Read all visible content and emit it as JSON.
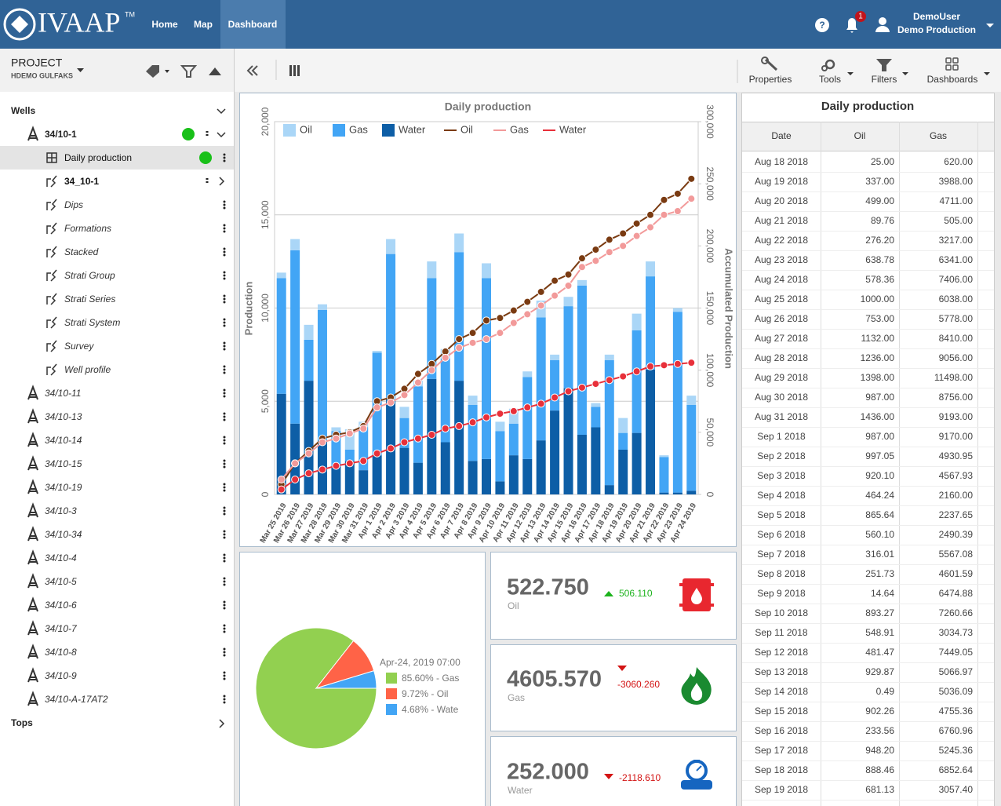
{
  "header": {
    "logo": "IVAAP",
    "trademark": "TM",
    "nav": [
      "Home",
      "Map",
      "Dashboard"
    ],
    "notifications": "1",
    "user": "DemoUser",
    "user_project": "Demo Production"
  },
  "sidebar": {
    "project_label": "PROJECT",
    "project_name": "HDEMO GULFAKS",
    "wells_label": "Wells",
    "well": "34/10-1",
    "datasets": [
      "Daily production",
      "34_10-1",
      "Dips",
      "Formations",
      "Stacked",
      "Strati Group",
      "Strati Series",
      "Strati System",
      "Survey",
      "Well profile"
    ],
    "wells": [
      "34/10-11",
      "34/10-13",
      "34/10-14",
      "34/10-15",
      "34/10-19",
      "34/10-3",
      "34/10-34",
      "34/10-4",
      "34/10-5",
      "34/10-6",
      "34/10-7",
      "34/10-8",
      "34/10-9",
      "34/10-A-17AT2"
    ],
    "tops_label": "Tops"
  },
  "toolbar": [
    "Properties",
    "Tools",
    "Filters",
    "Dashboards"
  ],
  "chart_data": [
    {
      "type": "bar",
      "title": "Daily production",
      "ylabel": "Production",
      "y2label": "Accumulated Production",
      "categories": [
        "Mar 25 2019",
        "Mar 26 2019",
        "Mar 27 2019",
        "Mar 28 2019",
        "Mar 29 2019",
        "Mar 30 2019",
        "Mar 31 2019",
        "Apr 1 2019",
        "Apr 2 2019",
        "Apr 3 2019",
        "Apr 4 2019",
        "Apr 5 2019",
        "Apr 6 2019",
        "Apr 7 2019",
        "Apr 8 2019",
        "Apr 9 2019",
        "Apr 10 2019",
        "Apr 11 2019",
        "Apr 12 2019",
        "Apr 13 2019",
        "Apr 14 2019",
        "Apr 15 2019",
        "Apr 16 2019",
        "Apr 17 2019",
        "Apr 18 2019",
        "Apr 19 2019",
        "Apr 20 2019",
        "Apr 21 2019",
        "Apr 22 2019",
        "Apr 23 2019",
        "Apr 24 2019"
      ],
      "series": [
        {
          "name": "Oil",
          "color": "#aad6f7",
          "values": [
            300,
            600,
            800,
            300,
            200,
            1100,
            300,
            100,
            800,
            600,
            300,
            900,
            500,
            1000,
            500,
            800,
            500,
            800,
            300,
            900,
            300,
            500,
            300,
            200,
            300,
            800,
            900,
            800,
            100,
            200,
            500
          ]
        },
        {
          "name": "Gas",
          "color": "#42a5f5",
          "values": [
            6200,
            9300,
            2200,
            7000,
            1900,
            600,
            2300,
            5500,
            7800,
            1600,
            4100,
            5400,
            4500,
            6900,
            3000,
            9700,
            2700,
            1700,
            4400,
            6600,
            2700,
            4400,
            8000,
            1100,
            6700,
            900,
            5500,
            5000,
            1900,
            9700,
            4600
          ]
        },
        {
          "name": "Water",
          "color": "#0d5ea6",
          "values": [
            5400,
            3800,
            6100,
            2900,
            1500,
            1800,
            1300,
            2100,
            5100,
            2500,
            1700,
            6200,
            2800,
            6100,
            1800,
            1900,
            700,
            2100,
            1900,
            2900,
            4500,
            5700,
            3200,
            3600,
            500,
            2400,
            3300,
            6700,
            100,
            100,
            200
          ]
        },
        {
          "name": "Oil",
          "color": "#7a3b12",
          "axis": "y2",
          "values": [
            8000,
            25000,
            35000,
            45000,
            48000,
            50000,
            55000,
            75000,
            78000,
            85000,
            97000,
            105000,
            115000,
            125000,
            130000,
            140000,
            142000,
            148000,
            155000,
            163000,
            172000,
            177000,
            190000,
            197000,
            205000,
            210000,
            218000,
            225000,
            237000,
            242000,
            254000
          ]
        },
        {
          "name": "Gas",
          "color": "#f29a9a",
          "axis": "y2",
          "values": [
            12000,
            25000,
            33000,
            42000,
            45000,
            49000,
            53000,
            70000,
            74000,
            80000,
            90000,
            100000,
            110000,
            118000,
            122000,
            125000,
            130000,
            138000,
            145000,
            152000,
            160000,
            168000,
            183000,
            188000,
            195000,
            200000,
            208000,
            215000,
            225000,
            228000,
            238000
          ]
        },
        {
          "name": "Water",
          "color": "#e8303a",
          "axis": "y2",
          "values": [
            4000,
            12000,
            17000,
            20000,
            23000,
            25000,
            27000,
            33000,
            37000,
            42000,
            45000,
            48000,
            53000,
            55000,
            58000,
            62000,
            65000,
            67000,
            70000,
            73000,
            78000,
            83000,
            86000,
            89000,
            92000,
            95000,
            99000,
            103000,
            104000,
            105000,
            106000
          ]
        }
      ],
      "ylim": [
        0,
        20000
      ],
      "yticks": [
        0,
        {
          "value": 5000,
          "label": "5,000"
        },
        {
          "value": 10000,
          "label": "10,000"
        },
        {
          "value": 15000,
          "label": "15,000"
        },
        {
          "value": 20000,
          "label": "20,000"
        }
      ],
      "y2lim": [
        0,
        300000
      ],
      "y2ticks": [
        0,
        {
          "value": 50000,
          "label": "50,000"
        },
        {
          "value": 100000,
          "label": "100,000"
        },
        {
          "value": 150000,
          "label": "150,000"
        },
        {
          "value": 200000,
          "label": "200,000"
        },
        {
          "value": 250000,
          "label": "250,000"
        },
        {
          "value": 300000,
          "label": "300,000"
        }
      ],
      "grid": true,
      "legend": "top"
    },
    {
      "type": "pie",
      "title": "Apr-24, 2019 07:00",
      "values": [
        85.6,
        9.72,
        4.68
      ],
      "value_labels": [
        "85.60% - Gas",
        "9.72% - Oil",
        "4.68% - Wate"
      ],
      "colors": [
        "#92d050",
        "#ff6347",
        "#42a5f5"
      ]
    }
  ],
  "kpis": [
    {
      "value": "522.750",
      "label": "Oil",
      "change": "506.110",
      "direction": "up"
    },
    {
      "value": "4605.570",
      "label": "Gas",
      "change": "-3060.260",
      "direction": "down"
    },
    {
      "value": "252.000",
      "label": "Water",
      "change": "-2118.610",
      "direction": "down"
    }
  ],
  "table": {
    "title": "Daily production",
    "columns": [
      "Date",
      "Oil",
      "Gas"
    ],
    "rows": [
      [
        "Aug 18 2018",
        "25.00",
        "620.00"
      ],
      [
        "Aug 19 2018",
        "337.00",
        "3988.00"
      ],
      [
        "Aug 20 2018",
        "499.00",
        "4711.00"
      ],
      [
        "Aug 21 2018",
        "89.76",
        "505.00"
      ],
      [
        "Aug 22 2018",
        "276.20",
        "3217.00"
      ],
      [
        "Aug 23 2018",
        "638.78",
        "6341.00"
      ],
      [
        "Aug 24 2018",
        "578.36",
        "7406.00"
      ],
      [
        "Aug 25 2018",
        "1000.00",
        "6038.00"
      ],
      [
        "Aug 26 2018",
        "753.00",
        "5778.00"
      ],
      [
        "Aug 27 2018",
        "1132.00",
        "8410.00"
      ],
      [
        "Aug 28 2018",
        "1236.00",
        "9056.00"
      ],
      [
        "Aug 29 2018",
        "1398.00",
        "11498.00"
      ],
      [
        "Aug 30 2018",
        "987.00",
        "8756.00"
      ],
      [
        "Aug 31 2018",
        "1436.00",
        "9193.00"
      ],
      [
        "Sep 1 2018",
        "987.00",
        "9170.00"
      ],
      [
        "Sep 2 2018",
        "997.05",
        "4930.95"
      ],
      [
        "Sep 3 2018",
        "920.10",
        "4567.93"
      ],
      [
        "Sep 4 2018",
        "464.24",
        "2160.00"
      ],
      [
        "Sep 5 2018",
        "865.64",
        "2237.65"
      ],
      [
        "Sep 6 2018",
        "560.10",
        "2490.39"
      ],
      [
        "Sep 7 2018",
        "316.01",
        "5567.08"
      ],
      [
        "Sep 8 2018",
        "251.73",
        "4601.59"
      ],
      [
        "Sep 9 2018",
        "14.64",
        "6474.88"
      ],
      [
        "Sep 10 2018",
        "893.27",
        "7260.66"
      ],
      [
        "Sep 11 2018",
        "548.91",
        "3034.73"
      ],
      [
        "Sep 12 2018",
        "481.47",
        "7449.05"
      ],
      [
        "Sep 13 2018",
        "929.87",
        "5066.97"
      ],
      [
        "Sep 14 2018",
        "0.49",
        "5036.09"
      ],
      [
        "Sep 15 2018",
        "902.26",
        "4755.36"
      ],
      [
        "Sep 16 2018",
        "233.56",
        "6760.96"
      ],
      [
        "Sep 17 2018",
        "948.20",
        "5245.36"
      ],
      [
        "Sep 18 2018",
        "888.46",
        "6852.64"
      ],
      [
        "Sep 19 2018",
        "681.13",
        "3057.40"
      ]
    ]
  }
}
